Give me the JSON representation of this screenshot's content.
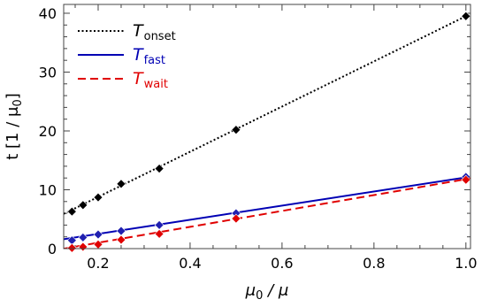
{
  "chart_data": {
    "type": "line",
    "xlabel": {
      "pre": "μ",
      "sub": "0",
      "post": " / μ"
    },
    "ylabel": {
      "pre": "t [1 / μ",
      "sub": "0",
      "post": "]"
    },
    "xlim": [
      0.125,
      1.01
    ],
    "ylim": [
      0,
      41.5
    ],
    "xticks": [
      0.2,
      0.4,
      0.6,
      0.8,
      1.0
    ],
    "xtick_labels": [
      "0.2",
      "0.4",
      "0.6",
      "0.8",
      "1.0"
    ],
    "yticks": [
      0,
      10,
      20,
      30,
      40
    ],
    "ytick_labels": [
      "0",
      "10",
      "20",
      "30",
      "40"
    ],
    "legend_position": "top-left",
    "series": [
      {
        "name": "onset",
        "label_main": "T",
        "label_sub": "onset",
        "color": "#000000",
        "line": "dotted",
        "marker_color": "#000000",
        "fit": {
          "intercept": 1.1,
          "slope": 38.4
        },
        "x": [
          0.143,
          0.167,
          0.2,
          0.25,
          0.333,
          0.5,
          1.0
        ],
        "y": [
          6.3,
          7.4,
          8.7,
          11.0,
          13.6,
          20.2,
          39.5
        ]
      },
      {
        "name": "fast",
        "label_main": "T",
        "label_sub": "fast",
        "color": "#0000b4",
        "line": "solid",
        "marker_color": "#2020b0",
        "fit": {
          "intercept": 0.1,
          "slope": 12.0
        },
        "x": [
          0.143,
          0.167,
          0.2,
          0.25,
          0.333,
          0.5,
          1.0
        ],
        "y": [
          1.4,
          1.9,
          2.4,
          3.0,
          4.0,
          6.0,
          12.2
        ]
      },
      {
        "name": "wait",
        "label_main": "T",
        "label_sub": "wait",
        "color": "#e00000",
        "line": "dashed",
        "marker_color": "#e00000",
        "fit": {
          "intercept": -1.7,
          "slope": 13.5
        },
        "x": [
          0.143,
          0.167,
          0.2,
          0.25,
          0.333,
          0.5,
          1.0
        ],
        "y": [
          0.1,
          0.3,
          0.7,
          1.5,
          2.5,
          5.1,
          11.7
        ]
      }
    ]
  }
}
